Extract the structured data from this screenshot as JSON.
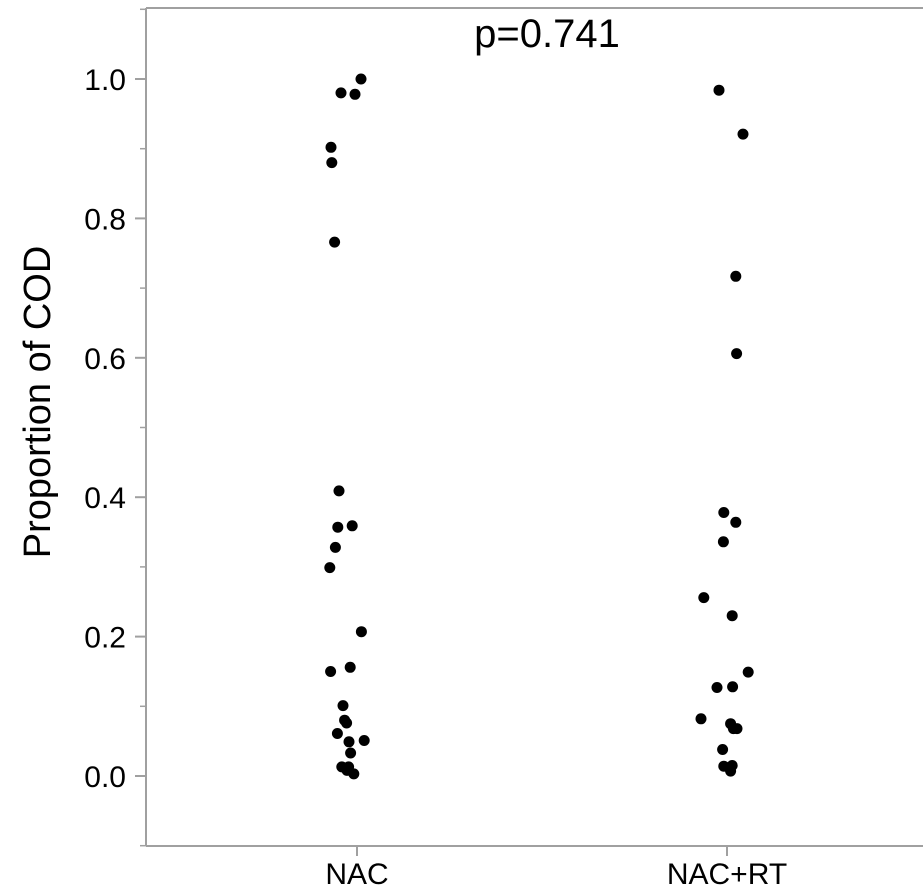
{
  "chart_data": {
    "type": "scatter",
    "title": "",
    "annotation": "p=0.741",
    "xlabel": "",
    "ylabel": "Proportion of COD",
    "ylim": [
      -0.1,
      1.1
    ],
    "yticks": [
      "0.0",
      "0.2",
      "0.4",
      "0.6",
      "0.8",
      "1.0"
    ],
    "categories": [
      "NAC",
      "NAC+RT"
    ],
    "grid": false,
    "legend": "none",
    "point_color": "#000000",
    "axis_color": "#a0a0a0",
    "series": [
      {
        "category": "NAC",
        "points": [
          {
            "jitter": 0.01,
            "y": 1.0
          },
          {
            "jitter": -0.04,
            "y": 0.98
          },
          {
            "jitter": -0.005,
            "y": 0.978
          },
          {
            "jitter": -0.065,
            "y": 0.902
          },
          {
            "jitter": -0.063,
            "y": 0.88
          },
          {
            "jitter": -0.056,
            "y": 0.766
          },
          {
            "jitter": -0.045,
            "y": 0.409
          },
          {
            "jitter": -0.012,
            "y": 0.359
          },
          {
            "jitter": -0.048,
            "y": 0.357
          },
          {
            "jitter": -0.054,
            "y": 0.328
          },
          {
            "jitter": -0.068,
            "y": 0.299
          },
          {
            "jitter": 0.011,
            "y": 0.207
          },
          {
            "jitter": -0.017,
            "y": 0.156
          },
          {
            "jitter": -0.066,
            "y": 0.15
          },
          {
            "jitter": -0.035,
            "y": 0.101
          },
          {
            "jitter": -0.031,
            "y": 0.08
          },
          {
            "jitter": -0.026,
            "y": 0.076
          },
          {
            "jitter": -0.049,
            "y": 0.061
          },
          {
            "jitter": 0.018,
            "y": 0.051
          },
          {
            "jitter": -0.02,
            "y": 0.049
          },
          {
            "jitter": -0.016,
            "y": 0.033
          },
          {
            "jitter": -0.038,
            "y": 0.013
          },
          {
            "jitter": -0.021,
            "y": 0.013
          },
          {
            "jitter": -0.025,
            "y": 0.008
          },
          {
            "jitter": -0.008,
            "y": 0.003
          }
        ]
      },
      {
        "category": "NAC+RT",
        "points": [
          {
            "jitter": -0.02,
            "y": 0.984
          },
          {
            "jitter": 0.04,
            "y": 0.921
          },
          {
            "jitter": 0.022,
            "y": 0.717
          },
          {
            "jitter": 0.024,
            "y": 0.606
          },
          {
            "jitter": -0.008,
            "y": 0.378
          },
          {
            "jitter": 0.022,
            "y": 0.364
          },
          {
            "jitter": -0.009,
            "y": 0.336
          },
          {
            "jitter": -0.058,
            "y": 0.256
          },
          {
            "jitter": 0.013,
            "y": 0.23
          },
          {
            "jitter": 0.053,
            "y": 0.149
          },
          {
            "jitter": -0.025,
            "y": 0.127
          },
          {
            "jitter": 0.014,
            "y": 0.128
          },
          {
            "jitter": -0.065,
            "y": 0.082
          },
          {
            "jitter": 0.009,
            "y": 0.075
          },
          {
            "jitter": 0.016,
            "y": 0.068
          },
          {
            "jitter": 0.025,
            "y": 0.068
          },
          {
            "jitter": -0.011,
            "y": 0.038
          },
          {
            "jitter": 0.013,
            "y": 0.015
          },
          {
            "jitter": -0.008,
            "y": 0.014
          },
          {
            "jitter": 0.005,
            "y": 0.012
          },
          {
            "jitter": 0.009,
            "y": 0.007
          }
        ]
      }
    ]
  }
}
